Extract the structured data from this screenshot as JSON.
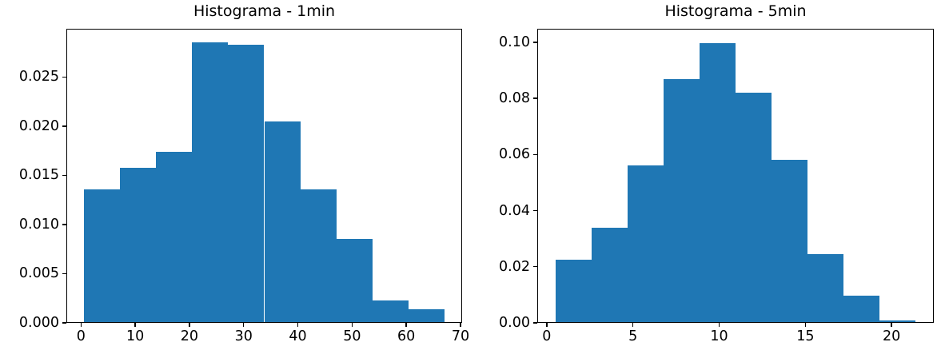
{
  "figure": {
    "background_color": "#ffffff",
    "bar_color": "#1f77b4",
    "spine_color": "#000000",
    "text_color": "#000000"
  },
  "chart_data": [
    {
      "type": "bar",
      "subtype": "histogram",
      "title": "Histograma - 1min",
      "xlabel": "",
      "ylabel": "",
      "grid": false,
      "legend": null,
      "bin_edges": [
        0.6,
        7.24,
        13.88,
        20.52,
        27.16,
        33.8,
        40.44,
        47.08,
        53.72,
        60.36,
        67.0
      ],
      "values": [
        0.0136,
        0.0158,
        0.0174,
        0.0285,
        0.0283,
        0.0205,
        0.0136,
        0.0085,
        0.0023,
        0.0014
      ],
      "xlim": [
        -2.7,
        70.3
      ],
      "ylim": [
        0,
        0.0299
      ],
      "xticks": {
        "values": [
          0,
          10,
          20,
          30,
          40,
          50,
          60,
          70
        ],
        "labels": [
          "0",
          "10",
          "20",
          "30",
          "40",
          "50",
          "60",
          "70"
        ]
      },
      "yticks": {
        "values": [
          0,
          0.005,
          0.01,
          0.015,
          0.02,
          0.025
        ],
        "labels": [
          "0.000",
          "0.005",
          "0.010",
          "0.015",
          "0.020",
          "0.025"
        ]
      }
    },
    {
      "type": "bar",
      "subtype": "histogram",
      "title": "Histograma - 5min",
      "xlabel": "",
      "ylabel": "",
      "grid": false,
      "legend": null,
      "bin_edges": [
        0.5,
        2.59,
        4.68,
        6.77,
        8.86,
        10.95,
        13.04,
        15.13,
        17.22,
        19.31,
        21.4
      ],
      "values": [
        0.0225,
        0.034,
        0.056,
        0.087,
        0.0998,
        0.082,
        0.0582,
        0.0245,
        0.0098,
        0.001
      ],
      "xlim": [
        -0.55,
        22.45
      ],
      "ylim": [
        0,
        0.1048
      ],
      "xticks": {
        "values": [
          0,
          5,
          10,
          15,
          20
        ],
        "labels": [
          "0",
          "5",
          "10",
          "15",
          "20"
        ]
      },
      "yticks": {
        "values": [
          0,
          0.02,
          0.04,
          0.06,
          0.08,
          0.1
        ],
        "labels": [
          "0.00",
          "0.02",
          "0.04",
          "0.06",
          "0.08",
          "0.10"
        ]
      }
    }
  ]
}
